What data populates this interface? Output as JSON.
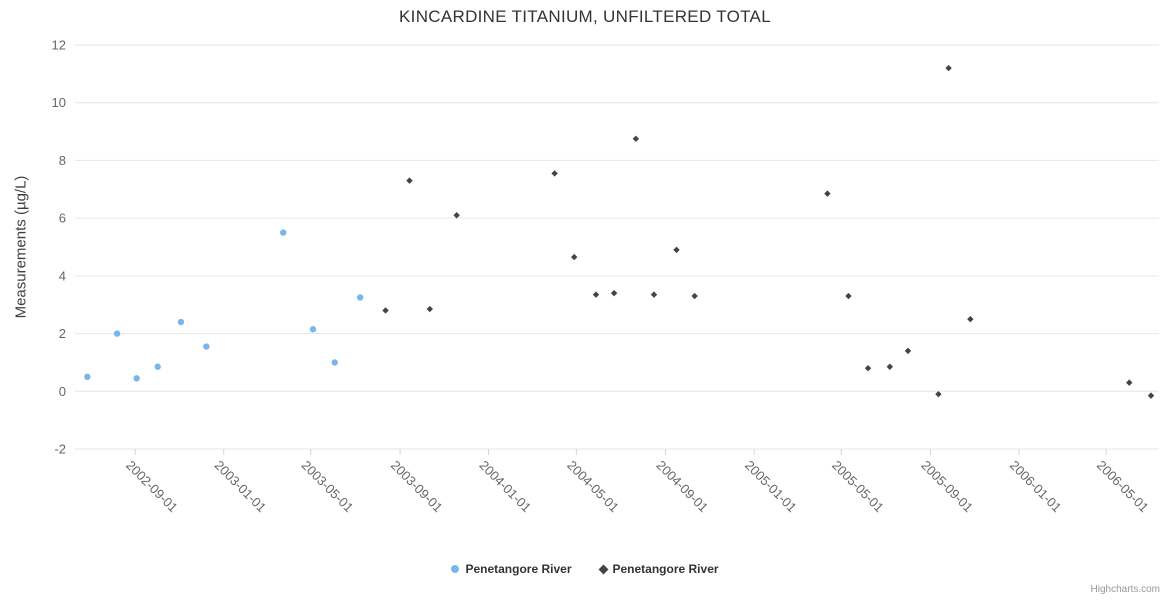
{
  "credit": "Highcharts.com",
  "chart_data": {
    "type": "scatter",
    "title": "KINCARDINE TITANIUM, UNFILTERED TOTAL",
    "xlabel": "",
    "ylabel": "Measurements (µg/L)",
    "ylim": [
      -2,
      12
    ],
    "yticks": [
      -2,
      0,
      2,
      4,
      6,
      8,
      10,
      12
    ],
    "xlim": [
      "2002-06-10",
      "2006-07-13"
    ],
    "xticks": [
      "2002-09-01",
      "2003-01-01",
      "2003-05-01",
      "2003-09-01",
      "2004-01-01",
      "2004-05-01",
      "2004-09-01",
      "2005-01-01",
      "2005-05-01",
      "2005-09-01",
      "2006-01-01",
      "2006-05-01"
    ],
    "grid": "horizontal",
    "legend_position": "bottom-center",
    "series": [
      {
        "name": "Penetangore River",
        "marker": "circle",
        "color": "#7cb5ec",
        "points": [
          {
            "date": "2002-06-27",
            "value": 0.5
          },
          {
            "date": "2002-08-07",
            "value": 2.0
          },
          {
            "date": "2002-09-03",
            "value": 0.45
          },
          {
            "date": "2002-10-02",
            "value": 0.85
          },
          {
            "date": "2002-11-03",
            "value": 2.4
          },
          {
            "date": "2002-12-08",
            "value": 1.55
          },
          {
            "date": "2003-03-24",
            "value": 5.5
          },
          {
            "date": "2003-05-04",
            "value": 2.15
          },
          {
            "date": "2003-06-03",
            "value": 1.0
          },
          {
            "date": "2003-07-08",
            "value": 3.25
          }
        ]
      },
      {
        "name": "Penetangore River",
        "marker": "diamond",
        "color": "#434348",
        "points": [
          {
            "date": "2003-08-12",
            "value": 2.8
          },
          {
            "date": "2003-09-14",
            "value": 7.3
          },
          {
            "date": "2003-10-12",
            "value": 2.85
          },
          {
            "date": "2003-11-18",
            "value": 6.1
          },
          {
            "date": "2004-04-01",
            "value": 7.55
          },
          {
            "date": "2004-04-28",
            "value": 4.65
          },
          {
            "date": "2004-05-28",
            "value": 3.35
          },
          {
            "date": "2004-06-22",
            "value": 3.4
          },
          {
            "date": "2004-07-22",
            "value": 8.75
          },
          {
            "date": "2004-08-16",
            "value": 3.35
          },
          {
            "date": "2004-09-16",
            "value": 4.9
          },
          {
            "date": "2004-10-11",
            "value": 3.3
          },
          {
            "date": "2005-04-12",
            "value": 6.85
          },
          {
            "date": "2005-05-11",
            "value": 3.3
          },
          {
            "date": "2005-06-07",
            "value": 0.8
          },
          {
            "date": "2005-07-07",
            "value": 0.85
          },
          {
            "date": "2005-08-01",
            "value": 1.4
          },
          {
            "date": "2005-09-12",
            "value": -0.1
          },
          {
            "date": "2005-09-26",
            "value": 11.2
          },
          {
            "date": "2005-10-26",
            "value": 2.5
          },
          {
            "date": "2006-06-02",
            "value": 0.3
          },
          {
            "date": "2006-07-02",
            "value": -0.15
          }
        ]
      }
    ]
  }
}
